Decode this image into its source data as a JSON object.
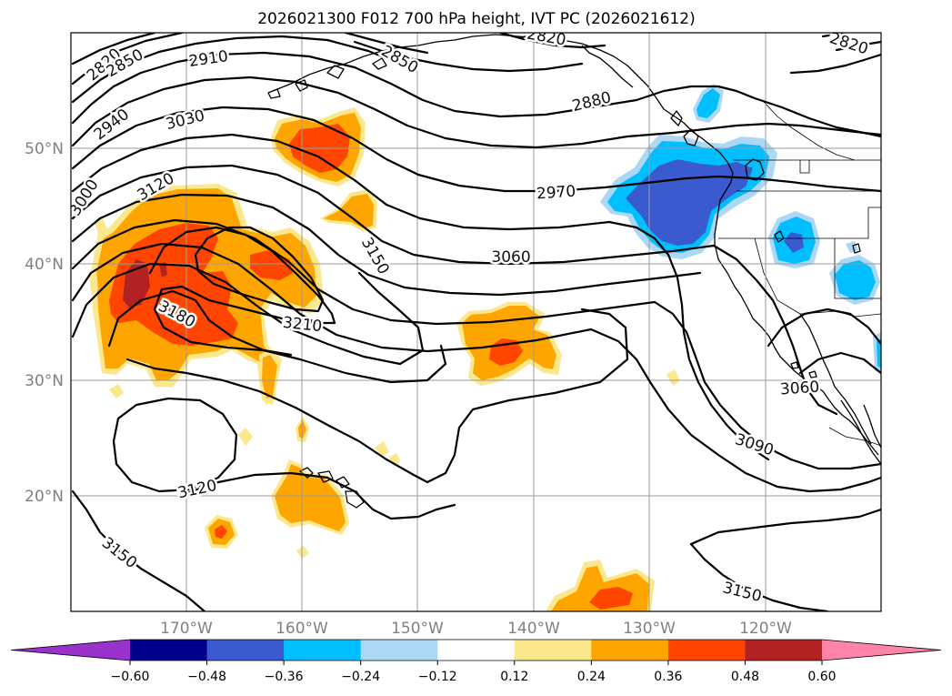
{
  "title": "2026021300 F012 700 hPa height, IVT PC (2026021612)",
  "lon_axis": {
    "ticks": [
      {
        "lon": -170,
        "label": "170°W"
      },
      {
        "lon": -160,
        "label": "160°W"
      },
      {
        "lon": -150,
        "label": "150°W"
      },
      {
        "lon": -140,
        "label": "140°W"
      },
      {
        "lon": -130,
        "label": "130°W"
      },
      {
        "lon": -120,
        "label": "120°W"
      }
    ]
  },
  "lat_axis": {
    "ticks": [
      {
        "lat": 20,
        "label": "20°N"
      },
      {
        "lat": 30,
        "label": "30°N"
      },
      {
        "lat": 40,
        "label": "40°N"
      },
      {
        "lat": 50,
        "label": "50°N"
      }
    ]
  },
  "extent": {
    "lon_min": -180,
    "lon_max": -110,
    "lat_min": 10,
    "lat_max": 60
  },
  "contour_labels": [
    {
      "text": "2820"
    },
    {
      "text": "2850"
    },
    {
      "text": "2910"
    },
    {
      "text": "2940"
    },
    {
      "text": "3000"
    },
    {
      "text": "3030"
    },
    {
      "text": "3120"
    },
    {
      "text": "2850"
    },
    {
      "text": "2820"
    },
    {
      "text": "2880"
    },
    {
      "text": "2820"
    },
    {
      "text": "2970"
    },
    {
      "text": "3150"
    },
    {
      "text": "3060"
    },
    {
      "text": "3180"
    },
    {
      "text": "3210"
    },
    {
      "text": "3060"
    },
    {
      "text": "3090"
    },
    {
      "text": "3120"
    },
    {
      "text": "3150"
    },
    {
      "text": "3150"
    }
  ],
  "colorbar": {
    "levels": [
      "−0.60",
      "−0.48",
      "−0.36",
      "−0.24",
      "−0.12",
      "0.12",
      "0.24",
      "0.36",
      "0.48",
      "0.60"
    ],
    "colors": [
      "#9932cc",
      "#00008b",
      "#3a5bd0",
      "#00bfff",
      "#add8f5",
      "#ffffff",
      "#fbe88c",
      "#ffa500",
      "#ff4500",
      "#b22222",
      "#ff85a8"
    ]
  }
}
